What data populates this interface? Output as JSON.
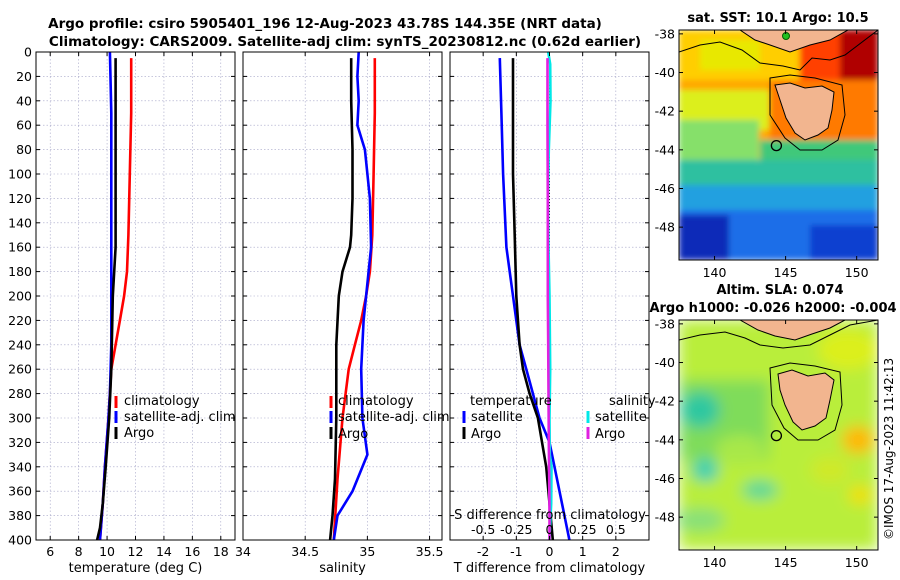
{
  "header": {
    "title_line1": "Argo profile: csiro 5905401_196 12-Aug-2023 43.78S 144.35E (NRT data)",
    "title_line2": "Climatology: CARS2009. Satellite-adj clim: synTS_20230812.nc (0.62d earlier)"
  },
  "colors": {
    "climatology": "#ff0000",
    "satellite": "#0000ff",
    "argo": "#000000",
    "salinity_satellite": "#00e8e8",
    "salinity_argo": "#e020e0",
    "coast": "#000000",
    "land": "#f2b58f",
    "grid": "#a0a0c0"
  },
  "stamp": "©IMOS 17-Aug-2023 11:42:13",
  "chart_data": [
    {
      "type": "line",
      "id": "temperature",
      "xlabel": "temperature (deg C)",
      "xlim": [
        5,
        19
      ],
      "xticks": [
        6,
        8,
        10,
        12,
        14,
        16,
        18
      ],
      "ylim": [
        400,
        0
      ],
      "yticks": [
        0,
        20,
        40,
        60,
        80,
        100,
        120,
        140,
        160,
        180,
        200,
        220,
        240,
        260,
        280,
        300,
        320,
        340,
        360,
        380,
        400
      ],
      "grid": true,
      "legend": [
        "climatology",
        "satellite-adj. clim",
        "Argo"
      ],
      "series": [
        {
          "name": "climatology",
          "color": "#ff0000",
          "x": [
            11.7,
            11.7,
            11.6,
            11.5,
            11.4,
            11.2,
            10.9,
            10.6,
            10.3,
            10.1,
            9.85,
            9.7,
            9.5
          ],
          "y": [
            5,
            50,
            100,
            150,
            180,
            200,
            220,
            240,
            260,
            300,
            340,
            370,
            400
          ]
        },
        {
          "name": "satellite-adj. clim",
          "color": "#0000ff",
          "x": [
            10.2,
            10.3,
            10.3,
            10.3,
            10.3,
            10.3,
            10.3,
            10.2,
            10.1,
            9.85,
            9.7,
            9.5
          ],
          "y": [
            0,
            50,
            100,
            150,
            180,
            200,
            240,
            280,
            300,
            340,
            370,
            400
          ]
        },
        {
          "name": "Argo",
          "color": "#000000",
          "x": [
            10.6,
            10.6,
            10.6,
            10.6,
            10.5,
            10.4,
            10.3,
            10.15,
            9.9,
            9.7,
            9.5,
            9.3
          ],
          "y": [
            5,
            100,
            140,
            160,
            180,
            200,
            260,
            300,
            340,
            370,
            390,
            400
          ]
        }
      ]
    },
    {
      "type": "line",
      "id": "salinity",
      "xlabel": "salinity",
      "xlim": [
        34.0,
        35.6
      ],
      "xticks": [
        34,
        34.5,
        35,
        35.5
      ],
      "xticklabels": [
        "34",
        "34.5",
        "35",
        "35.5"
      ],
      "ylim": [
        400,
        0
      ],
      "grid": true,
      "legend": [
        "climatology",
        "satellite-adj. clim",
        "Argo"
      ],
      "series": [
        {
          "name": "climatology",
          "color": "#ff0000",
          "x": [
            35.06,
            35.06,
            35.05,
            35.04,
            35.02,
            34.99,
            34.95,
            34.9,
            34.85,
            34.8,
            34.76,
            34.73
          ],
          "y": [
            5,
            50,
            100,
            150,
            180,
            200,
            220,
            240,
            260,
            300,
            350,
            400
          ]
        },
        {
          "name": "satellite-adj. clim",
          "color": "#0000ff",
          "x": [
            34.93,
            34.92,
            34.93,
            34.92,
            34.98,
            35.02,
            35.03,
            35.01,
            34.97,
            34.95,
            34.96,
            35.0,
            34.88,
            34.76,
            34.73
          ],
          "y": [
            0,
            20,
            40,
            60,
            80,
            120,
            160,
            180,
            220,
            260,
            300,
            330,
            360,
            380,
            400
          ]
        },
        {
          "name": "Argo",
          "color": "#000000",
          "x": [
            34.87,
            34.87,
            34.88,
            34.88,
            34.87,
            34.86,
            34.8,
            34.77,
            34.75,
            34.75,
            34.74,
            34.72,
            34.7
          ],
          "y": [
            5,
            40,
            80,
            120,
            150,
            160,
            180,
            200,
            240,
            300,
            350,
            380,
            400
          ]
        }
      ]
    },
    {
      "type": "line",
      "id": "difference",
      "xlabel": "T difference from climatology",
      "xlim": [
        -3,
        3
      ],
      "xticks": [
        -2,
        -1,
        0,
        1,
        2
      ],
      "top_axis_label": "S difference from climatology",
      "top_xlim": [
        -0.75,
        0.75
      ],
      "top_xticks": [
        -0.5,
        -0.25,
        0,
        0.25,
        0.5
      ],
      "top_xticklabels": [
        "-0.5",
        "-0.25",
        "0",
        "0.25",
        "0.5"
      ],
      "ylim": [
        400,
        0
      ],
      "grid": true,
      "legend_left_title": "temperature",
      "legend_right_title": "salinity",
      "legend_labels": [
        "satellite",
        "Argo"
      ],
      "series": [
        {
          "name": "temperature satellite",
          "color": "#0000ff",
          "x": [
            -1.5,
            -1.45,
            -1.4,
            -1.3,
            -1.1,
            -0.9,
            -0.6,
            -0.3,
            0.0,
            0.3,
            0.6
          ],
          "y": [
            5,
            50,
            100,
            160,
            200,
            240,
            270,
            300,
            320,
            360,
            400
          ]
        },
        {
          "name": "temperature Argo",
          "color": "#000000",
          "x": [
            -1.1,
            -1.1,
            -1.05,
            -1.0,
            -0.9,
            -0.8,
            -0.6,
            -0.35,
            -0.1,
            0.1
          ],
          "y": [
            5,
            100,
            150,
            200,
            240,
            260,
            280,
            300,
            340,
            400
          ]
        },
        {
          "name": "salinity satellite",
          "color": "#00e8e8",
          "x": [
            -0.04,
            0.02,
            0.03,
            -0.02,
            -0.05,
            -0.03,
            0.0,
            0.02,
            0.0,
            0.01,
            0.06,
            0.05,
            0.0
          ],
          "y": [
            0,
            10,
            40,
            80,
            120,
            160,
            200,
            260,
            300,
            330,
            340,
            370,
            400
          ]
        },
        {
          "name": "salinity Argo",
          "color": "#e020e0",
          "x": [
            -0.06,
            -0.06,
            -0.05,
            -0.05,
            -0.05,
            -0.04,
            -0.03,
            -0.02,
            -0.01,
            0.0,
            0.0
          ],
          "y": [
            5,
            60,
            120,
            160,
            200,
            240,
            280,
            320,
            350,
            380,
            400
          ]
        }
      ]
    },
    {
      "type": "heatmap",
      "id": "sst-map",
      "title": "sat. SST: 10.1 Argo: 10.5",
      "xlim": [
        137.5,
        151.5
      ],
      "xticks": [
        140,
        145,
        150
      ],
      "ylim": [
        -49.7,
        -37.8
      ],
      "yticks": [
        -38,
        -40,
        -42,
        -44,
        -46,
        -48
      ],
      "argo_location": [
        144.35,
        -43.78
      ],
      "colormap": "jet"
    },
    {
      "type": "heatmap",
      "id": "sla-map",
      "title_line1": "Altim. SLA: 0.074",
      "title_line2": "Argo h1000: -0.026 h2000: -0.004",
      "xlim": [
        137.5,
        151.5
      ],
      "xticks": [
        140,
        145,
        150
      ],
      "ylim": [
        -49.7,
        -37.8
      ],
      "yticks": [
        -38,
        -40,
        -42,
        -44,
        -46,
        -48
      ],
      "argo_location": [
        144.35,
        -43.78
      ],
      "colormap": "jet"
    }
  ]
}
